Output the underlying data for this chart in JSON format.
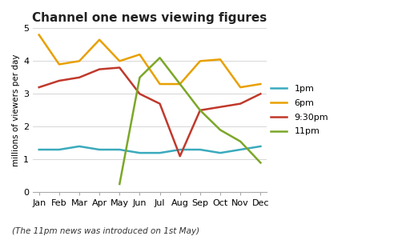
{
  "title": "Channel one news viewing figures",
  "subtitle": "(The 11pm news was introduced on 1st May)",
  "ylabel": "millions of viewers per day",
  "months": [
    "Jan",
    "Feb",
    "Mar",
    "Apr",
    "May",
    "Jun",
    "Jul",
    "Aug",
    "Sep",
    "Oct",
    "Nov",
    "Dec"
  ],
  "series": {
    "1pm": {
      "values": [
        1.3,
        1.3,
        1.4,
        1.3,
        1.3,
        1.2,
        1.2,
        1.3,
        1.3,
        1.2,
        1.3,
        1.4
      ],
      "color": "#3AAABD",
      "linewidth": 1.8
    },
    "6pm": {
      "values": [
        4.8,
        3.9,
        4.0,
        4.65,
        4.0,
        4.2,
        3.3,
        3.3,
        4.0,
        4.05,
        3.2,
        3.3
      ],
      "color": "#E8A000",
      "linewidth": 1.8
    },
    "9:30pm": {
      "values": [
        3.2,
        3.4,
        3.5,
        3.75,
        3.8,
        3.0,
        2.7,
        1.1,
        2.5,
        2.6,
        2.7,
        3.0
      ],
      "color": "#C0392B",
      "linewidth": 1.8
    },
    "11pm": {
      "values": [
        null,
        null,
        null,
        null,
        0.25,
        3.5,
        4.1,
        3.3,
        2.5,
        1.9,
        1.55,
        0.9
      ],
      "color": "#7BA728",
      "linewidth": 1.8
    }
  },
  "ylim": [
    0,
    5
  ],
  "yticks": [
    0,
    1,
    2,
    3,
    4,
    5
  ],
  "background_color": "#ffffff",
  "title_fontsize": 11,
  "label_fontsize": 7.5,
  "tick_fontsize": 8,
  "legend_labels": [
    "1pm",
    "6pm",
    "9:30pm",
    "11pm"
  ]
}
